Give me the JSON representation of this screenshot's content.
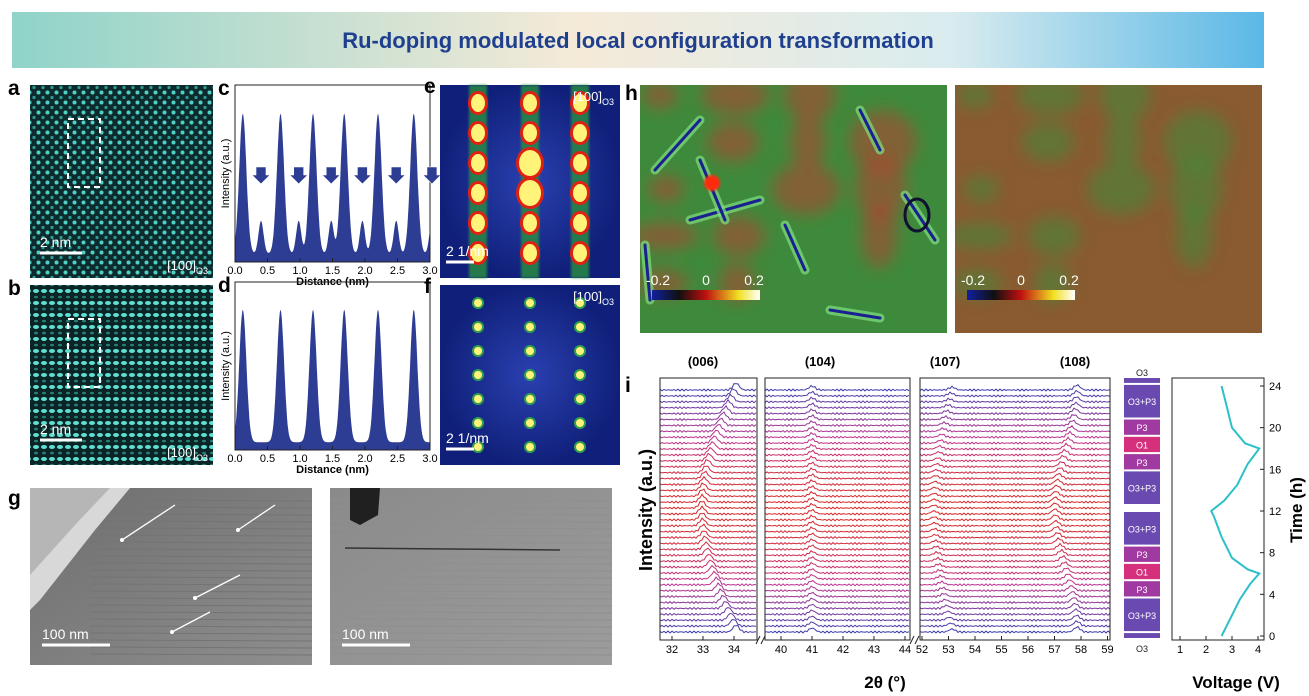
{
  "title": "Ru-doping  modulated local configuration transformation",
  "panels": {
    "a": {
      "label": "a",
      "scale_bar": "2 nm",
      "zone_axis": "[100]",
      "zone_sub": "O3"
    },
    "b": {
      "label": "b",
      "scale_bar": "2 nm",
      "zone_axis": "[100]",
      "zone_sub": "O3"
    },
    "c": {
      "label": "c",
      "y_label": "Intensity (a.u.)",
      "x_label": "Distance (nm)",
      "x_ticks": [
        "0.0",
        "0.5",
        "1.0",
        "1.5",
        "2.0",
        "2.5",
        "3.0"
      ]
    },
    "d": {
      "label": "d",
      "y_label": "Intensity (a.u.)",
      "x_label": "Distance (nm)",
      "x_ticks": [
        "0.0",
        "0.5",
        "1.0",
        "1.5",
        "2.0",
        "2.5",
        "3.0"
      ]
    },
    "e": {
      "label": "e",
      "scale_bar": "2 1/nm",
      "zone_axis": "[100]",
      "zone_sub": "O3"
    },
    "f": {
      "label": "f",
      "scale_bar": "2 1/nm",
      "zone_axis": "[100]",
      "zone_sub": "O3"
    },
    "g": {
      "label": "g",
      "scale_bars": [
        "100 nm",
        "100 nm"
      ]
    },
    "h": {
      "label": "h",
      "colorbars": [
        {
          "ticks": [
            "-0.2",
            "0",
            "0.2"
          ]
        },
        {
          "ticks": [
            "-0.2",
            "0",
            "0.2"
          ]
        }
      ]
    },
    "i": {
      "label": "i",
      "peaks": [
        "(006)",
        "(104)",
        "(107)",
        "(108)"
      ],
      "y_label": "Intensity (a.u.)",
      "x_label": "2θ (°)",
      "x_ticks": [
        "32",
        "33",
        "34",
        "40",
        "41",
        "42",
        "43",
        "44",
        "52",
        "53",
        "54",
        "55",
        "56",
        "57",
        "58",
        "59"
      ],
      "phases": [
        "O3",
        "O3+P3",
        "P3",
        "O1",
        "P3",
        "O3+P3",
        "O3+P3",
        "P3",
        "O1",
        "P3",
        "O3+P3",
        "O3"
      ],
      "time_label": "Time (h)",
      "time_ticks": [
        "0",
        "4",
        "8",
        "12",
        "16",
        "20",
        "24"
      ],
      "voltage_label": "Voltage (V)",
      "voltage_ticks": [
        "1",
        "2",
        "3",
        "4"
      ]
    }
  }
}
